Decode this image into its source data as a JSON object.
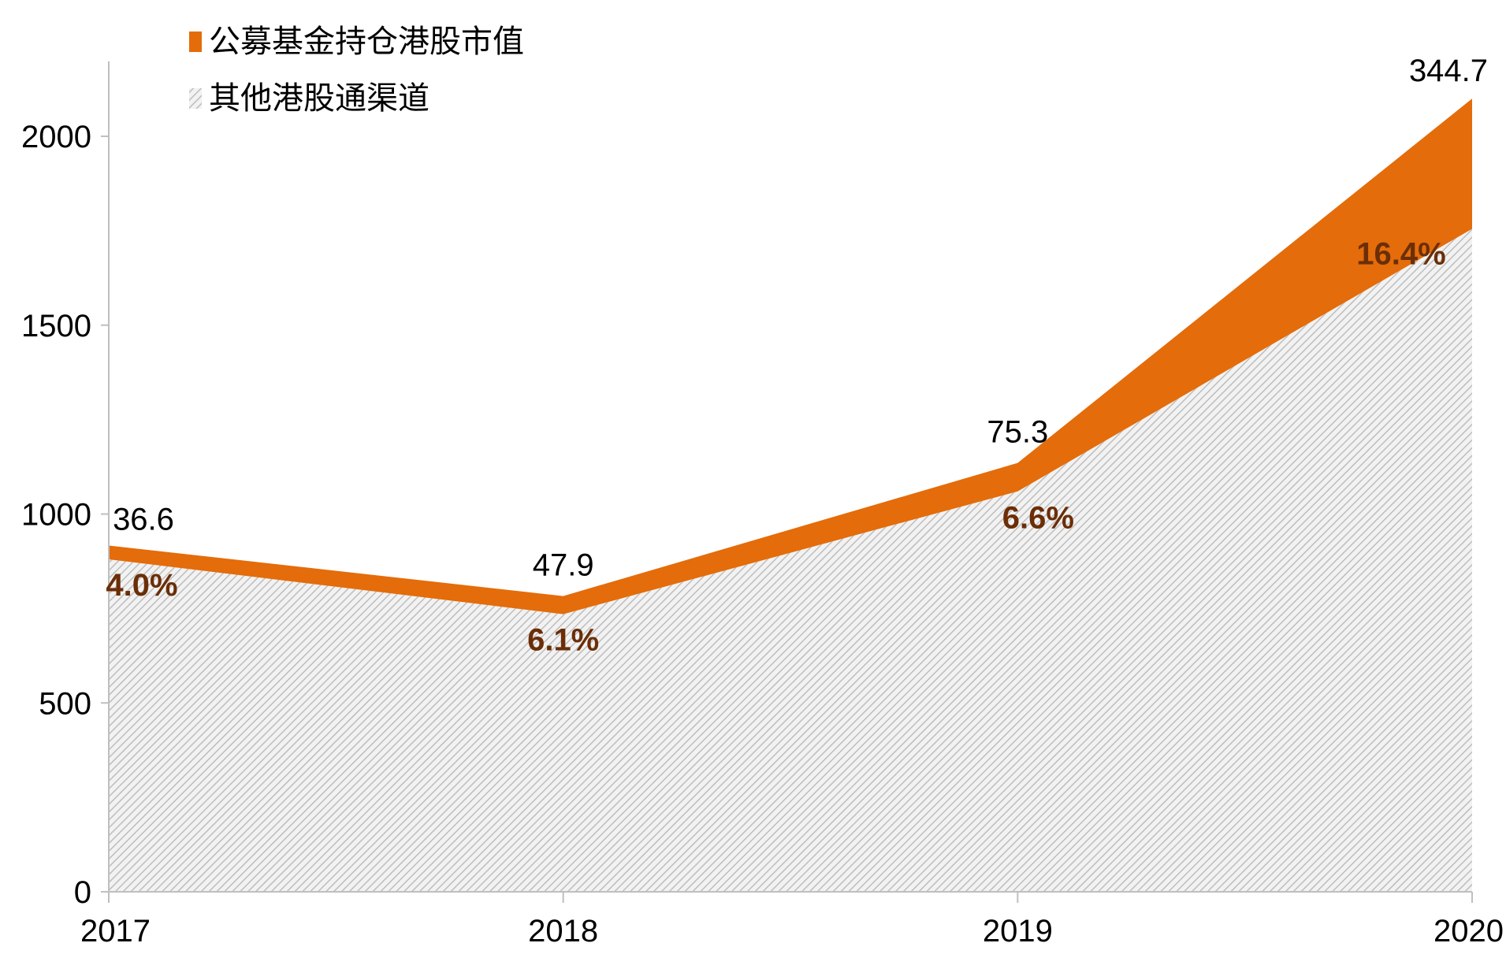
{
  "chart_data": {
    "type": "area",
    "stacked": true,
    "x": [
      "2017",
      "2018",
      "2019",
      "2020"
    ],
    "ylim": [
      0,
      2200
    ],
    "yticks": [
      "0",
      "500",
      "1000",
      "1500",
      "2000"
    ],
    "series": [
      {
        "name": "其他港股通渠道",
        "values": [
          880,
          735,
          1060,
          1755
        ],
        "fill": "hatch"
      },
      {
        "name": "公募基金持仓港股市值",
        "values": [
          36.6,
          47.9,
          75.3,
          344.7
        ],
        "value_labels": [
          "36.6",
          "47.9",
          "75.3",
          "344.7"
        ],
        "percent_labels": [
          "4.0%",
          "6.1%",
          "6.6%",
          "16.4%"
        ]
      }
    ],
    "legend": [
      "公募基金持仓港股市值",
      "其他港股通渠道"
    ],
    "legend_position": "top-left",
    "title": "",
    "xlabel": "",
    "ylabel": ""
  },
  "colors": {
    "fund": "#E46C0A",
    "percent_label": "#6B2E07",
    "hatch_line": "#BFBFBF",
    "hatch_bg": "#F2F2F2",
    "axis": "#BFBFBF"
  }
}
